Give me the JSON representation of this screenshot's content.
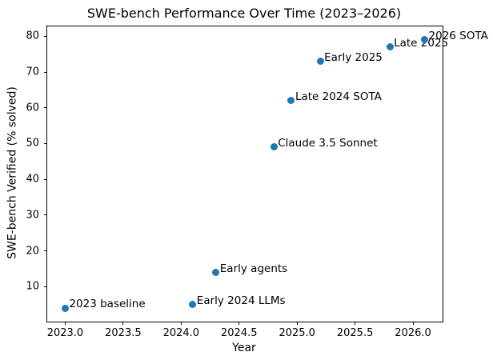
{
  "chart_data": {
    "type": "scatter",
    "title": "SWE-bench Performance Over Time (2023–2026)",
    "xlabel": "Year",
    "ylabel": "SWE-bench Verified (% solved)",
    "xlim": [
      2022.845,
      2026.255
    ],
    "ylim": [
      0.25,
      82.75
    ],
    "x_ticks": [
      2023.0,
      2023.5,
      2024.0,
      2024.5,
      2025.0,
      2025.5,
      2026.0
    ],
    "x_tick_labels": [
      "2023.0",
      "2023.5",
      "2024.0",
      "2024.5",
      "2025.0",
      "2025.5",
      "2026.0"
    ],
    "y_ticks": [
      10,
      20,
      30,
      40,
      50,
      60,
      70,
      80
    ],
    "y_tick_labels": [
      "10",
      "20",
      "30",
      "40",
      "50",
      "60",
      "70",
      "80"
    ],
    "grid": false,
    "legend_position": "none",
    "marker_color": "#1f77b4",
    "background_color": "#ffffff",
    "points": [
      {
        "x": 2023.0,
        "y": 4,
        "label": "2023 baseline"
      },
      {
        "x": 2024.1,
        "y": 5,
        "label": "Early 2024 LLMs"
      },
      {
        "x": 2024.3,
        "y": 14,
        "label": "Early agents"
      },
      {
        "x": 2024.8,
        "y": 49,
        "label": "Claude 3.5 Sonnet"
      },
      {
        "x": 2024.95,
        "y": 62,
        "label": "Late 2024 SOTA"
      },
      {
        "x": 2025.2,
        "y": 73,
        "label": "Early 2025"
      },
      {
        "x": 2025.8,
        "y": 77,
        "label": "Late 2025"
      },
      {
        "x": 2026.1,
        "y": 79,
        "label": "2026 SOTA"
      }
    ]
  }
}
